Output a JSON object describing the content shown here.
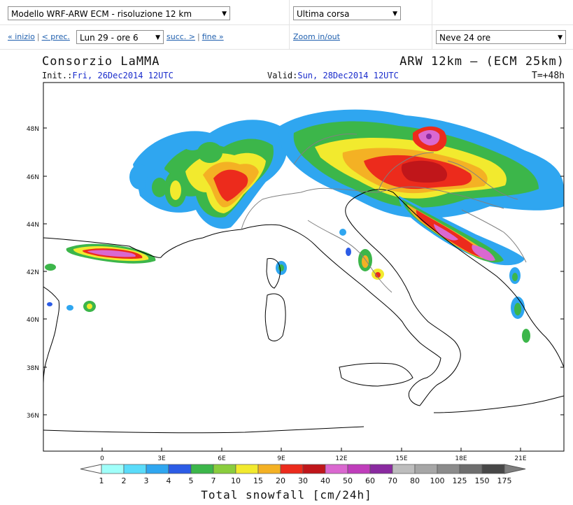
{
  "controls": {
    "model_select": "Modello WRF-ARW ECM - risoluzione 12 km",
    "run_select": "Ultima corsa",
    "nav_first": "« inizio",
    "nav_prev": "< prec.",
    "time_select": "Lun 29 - ore 6",
    "nav_next": "succ. >",
    "nav_last": "fine »",
    "nav_sep": "|",
    "zoom_link": "Zoom in/out",
    "field_select": "Neve 24 ore"
  },
  "map": {
    "title": "Consorzio LaMMA",
    "model_label": "ARW 12km – (ECM 25km)",
    "init_label": "Init.:",
    "init_value": "Fri, 26Dec2014 12UTC",
    "valid_label": "Valid:",
    "valid_value": "Sun, 28Dec2014 12UTC",
    "lead_time": "T=+48h",
    "lat_labels": [
      "48N",
      "46N",
      "44N",
      "42N",
      "40N",
      "38N",
      "36N"
    ],
    "lon_labels": [
      "0",
      "3E",
      "6E",
      "9E",
      "12E",
      "15E",
      "18E",
      "21E"
    ],
    "colorbar": {
      "levels": [
        "1",
        "2",
        "3",
        "4",
        "5",
        "7",
        "10",
        "15",
        "20",
        "30",
        "40",
        "50",
        "60",
        "70",
        "80",
        "100",
        "125",
        "150",
        "175"
      ],
      "colors": [
        "#a0fffa",
        "#5adcfa",
        "#2fa6f0",
        "#2c5ce6",
        "#3cb64a",
        "#8acd3d",
        "#f2ea2e",
        "#f4b124",
        "#ec2b1c",
        "#c0161a",
        "#da68d0",
        "#bf3dbb",
        "#8a2aa0",
        "#bdbdbd",
        "#a6a6a6",
        "#8b8b8b",
        "#6e6e6e",
        "#474747"
      ],
      "label": "Total snowfall [cm/24h]"
    }
  }
}
